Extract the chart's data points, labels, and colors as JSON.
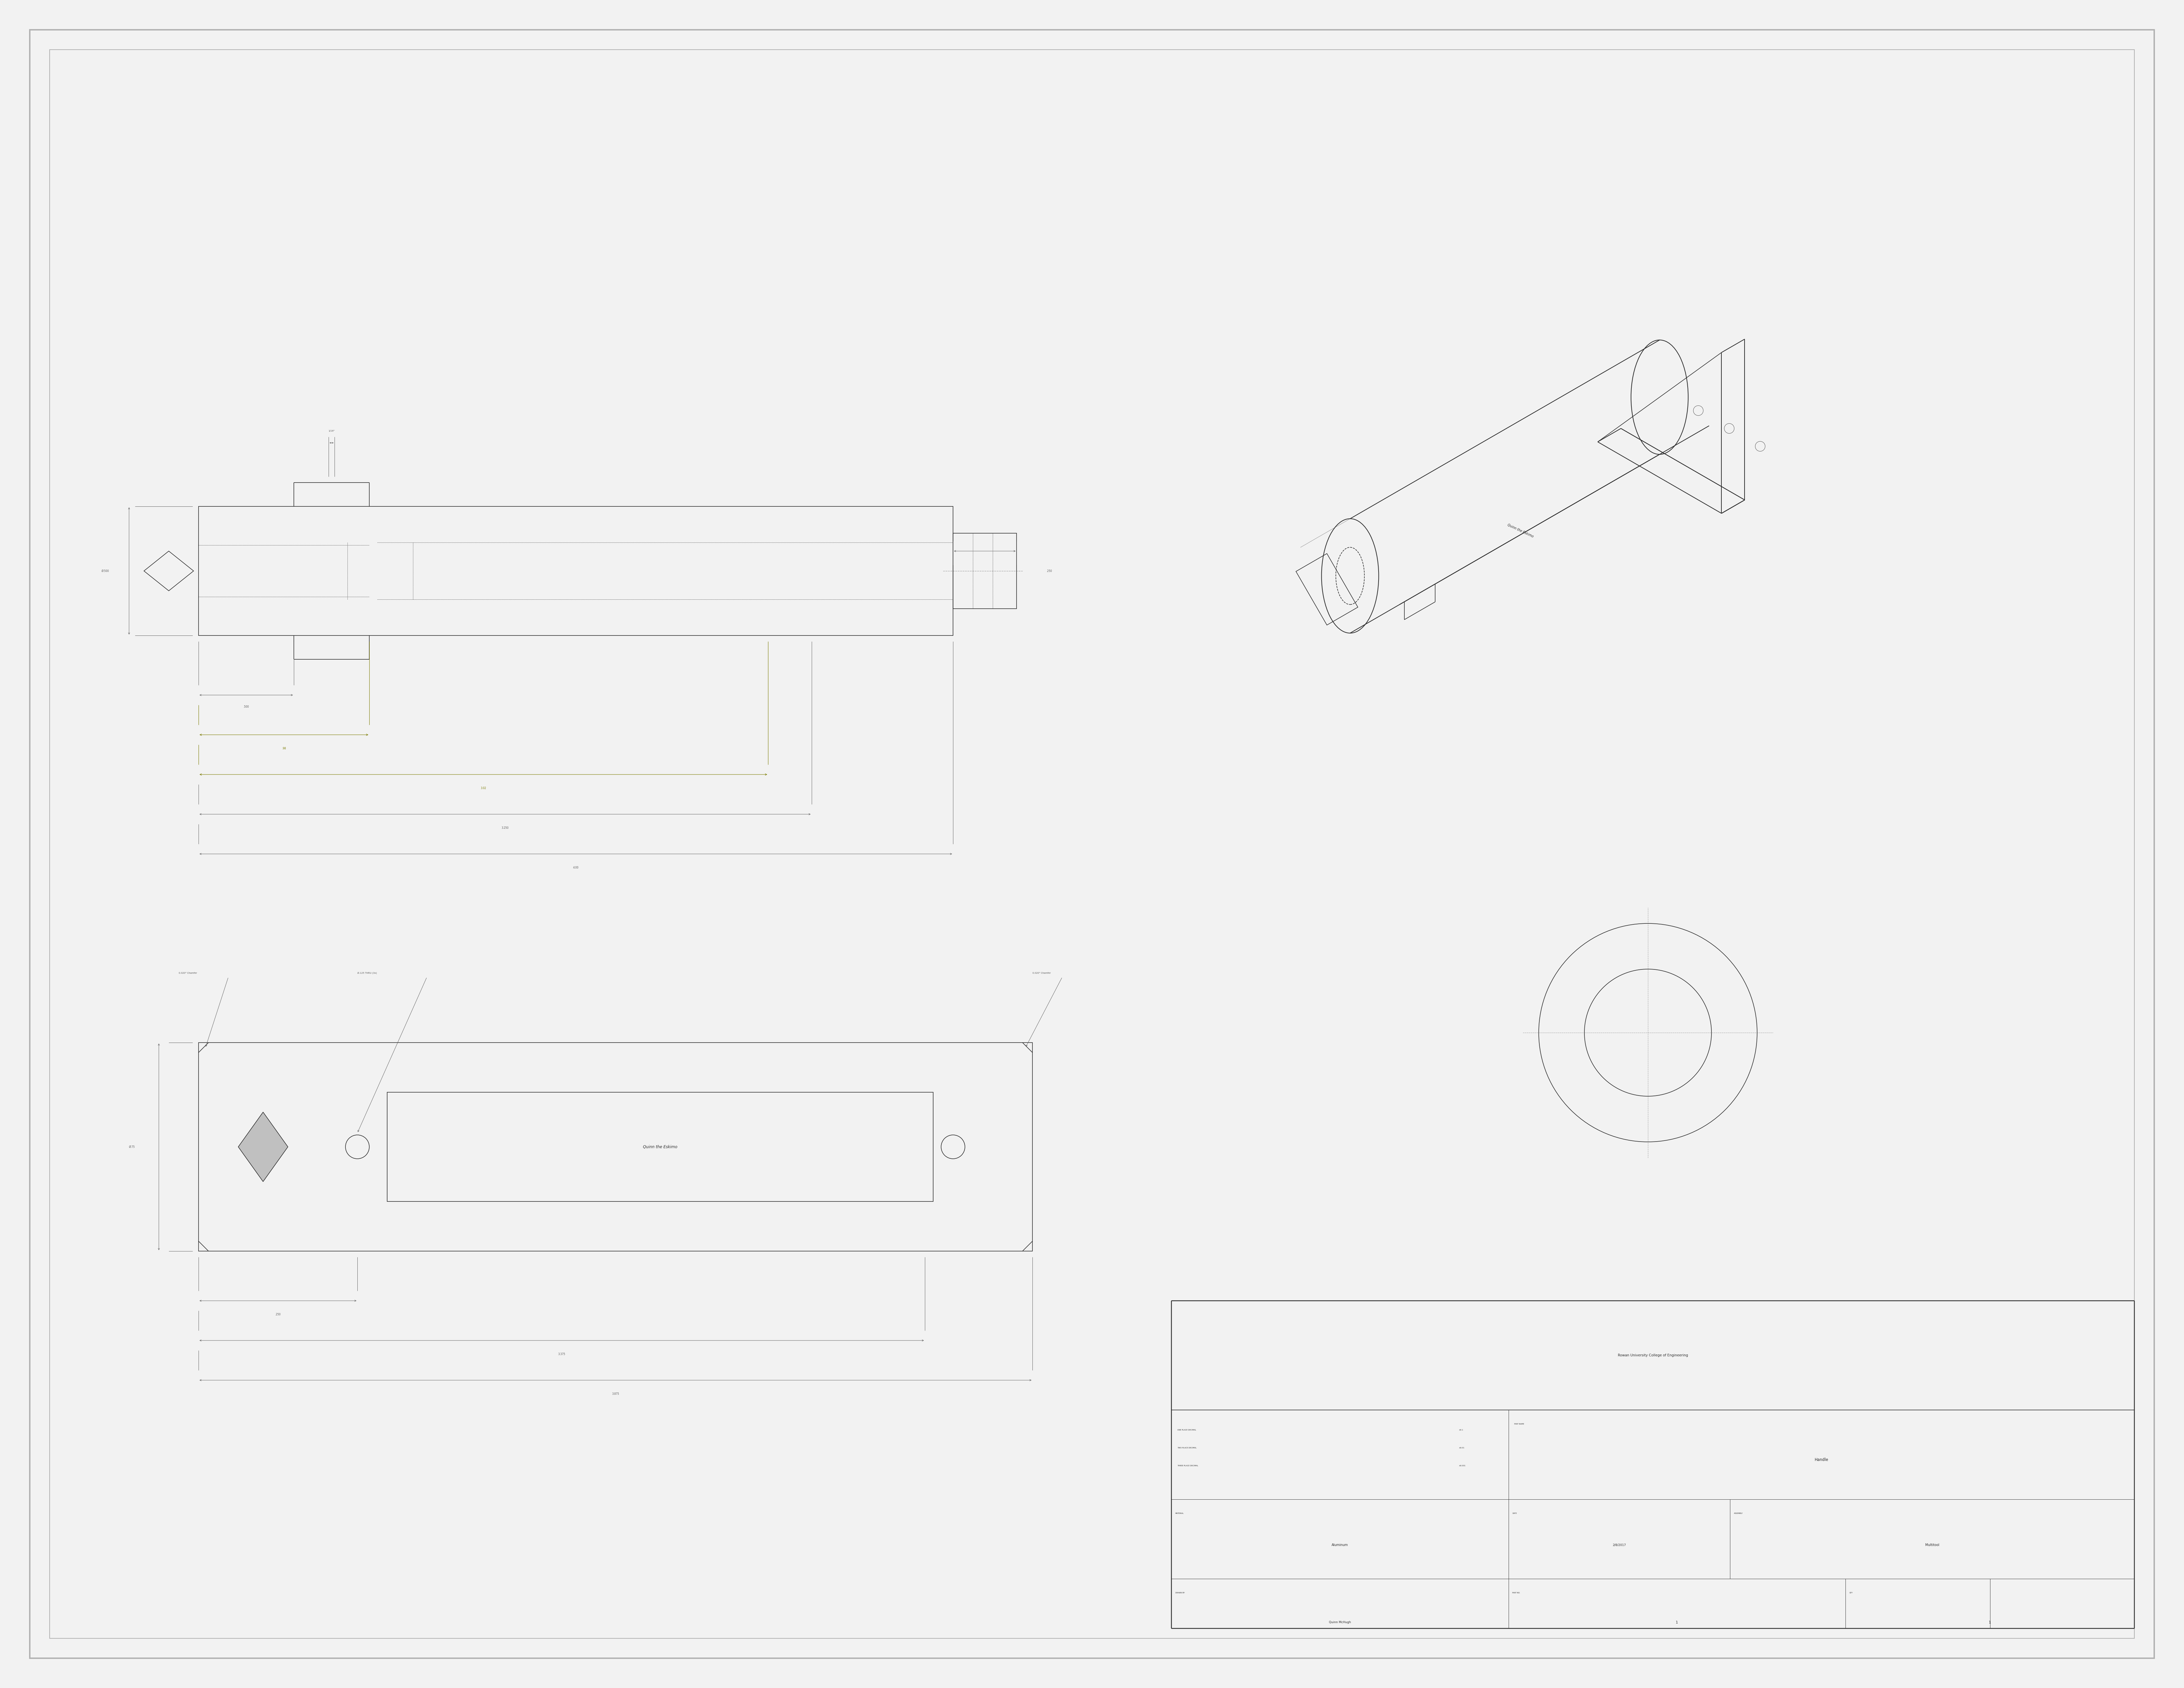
{
  "bg_color": "#f2f2f2",
  "border_color": "#b0b0b0",
  "line_color": "#2a2a2a",
  "dim_color": "#555555",
  "olive_color": "#7a7a00",
  "title": "Rowan University College of Engineering",
  "part_name": "Handle",
  "material": "Aluminum",
  "date": "2/8/2017",
  "assembly": "Multitool",
  "drawn_by": "Quinn McHugh",
  "part_no": "1",
  "qty": "1"
}
